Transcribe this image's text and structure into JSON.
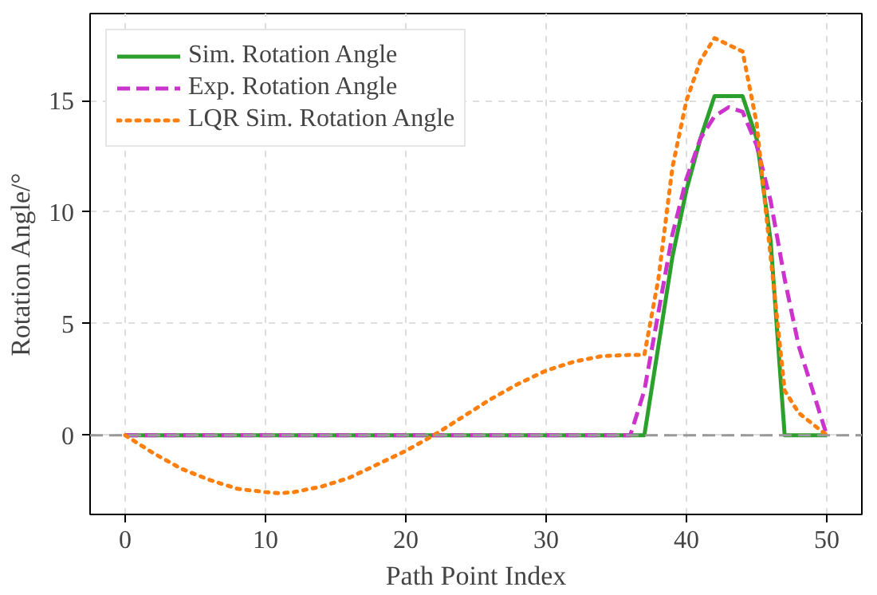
{
  "chart_data": {
    "type": "line",
    "xlabel": "Path Point Index",
    "ylabel": "Rotation Angle/°",
    "x": [
      0,
      1,
      2,
      3,
      4,
      5,
      6,
      7,
      8,
      9,
      10,
      11,
      12,
      13,
      14,
      15,
      16,
      17,
      18,
      19,
      20,
      21,
      22,
      23,
      24,
      25,
      26,
      27,
      28,
      29,
      30,
      31,
      32,
      33,
      34,
      35,
      36,
      37,
      38,
      39,
      40,
      41,
      42,
      43,
      44,
      45,
      46,
      47,
      48,
      49,
      50
    ],
    "series": [
      {
        "name": "Sim. Rotation Angle",
        "color": "#2ca02c",
        "line_style": "solid",
        "values": [
          0,
          0,
          0,
          0,
          0,
          0,
          0,
          0,
          0,
          0,
          0,
          0,
          0,
          0,
          0,
          0,
          0,
          0,
          0,
          0,
          0,
          0,
          0,
          0,
          0,
          0,
          0,
          0,
          0,
          0,
          0,
          0,
          0,
          0,
          0,
          0,
          0,
          0,
          4,
          8,
          11,
          13.3,
          15.2,
          15.2,
          15.2,
          13.3,
          8.7,
          0,
          0,
          0,
          0
        ]
      },
      {
        "name": "Exp. Rotation Angle",
        "color": "#cc33cc",
        "line_style": "dashed",
        "values": [
          0,
          0,
          0,
          0,
          0,
          0,
          0,
          0,
          0,
          0,
          0,
          0,
          0,
          0,
          0,
          0,
          0,
          0,
          0,
          0,
          0,
          0,
          0,
          0,
          0,
          0,
          0,
          0,
          0,
          0,
          0,
          0,
          0,
          0,
          0,
          0,
          0,
          2,
          5.5,
          9,
          11.5,
          13.3,
          14.3,
          14.7,
          14.5,
          13,
          10.5,
          7,
          4,
          2,
          0
        ]
      },
      {
        "name": "LQR Sim. Rotation Angle",
        "color": "#ff7f0e",
        "line_style": "dotted",
        "x": [
          0,
          2,
          4,
          6,
          8,
          10,
          11,
          12,
          14,
          16,
          18,
          20,
          22,
          24,
          26,
          28,
          30,
          32,
          34,
          36,
          37,
          38,
          39,
          40,
          41,
          42,
          43,
          44,
          45,
          46,
          47,
          48,
          49,
          50
        ],
        "values": [
          0,
          -0.8,
          -1.5,
          -2.0,
          -2.4,
          -2.55,
          -2.6,
          -2.55,
          -2.3,
          -1.9,
          -1.3,
          -0.7,
          0,
          0.8,
          1.6,
          2.3,
          2.9,
          3.3,
          3.55,
          3.6,
          3.6,
          7,
          12,
          15,
          16.8,
          17.8,
          17.5,
          17.2,
          14,
          8,
          2,
          1,
          0.5,
          0
        ]
      }
    ],
    "xlim": [
      -2.5,
      52.5
    ],
    "ylim": [
      -3.55,
      18.9
    ],
    "xticks": [
      0,
      10,
      20,
      30,
      40,
      50
    ],
    "yticks": [
      0,
      5,
      10,
      15
    ],
    "ref_lines": [
      {
        "axis": "y",
        "value": 0,
        "color": "#999999",
        "line_style": "dashed"
      }
    ],
    "grid": true,
    "legend": "top left"
  }
}
